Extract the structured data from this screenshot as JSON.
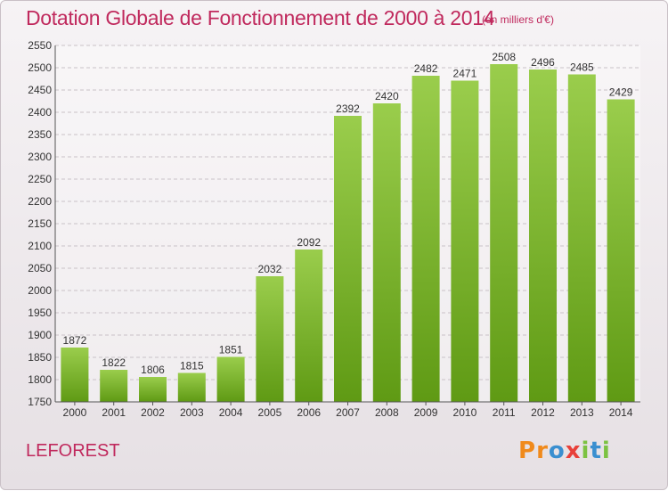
{
  "chart_data": {
    "type": "bar",
    "title": "Dotation Globale de Fonctionnement de 2000 à 2014",
    "subtitle": "(en milliers d'€)",
    "categories": [
      "2000",
      "2001",
      "2002",
      "2003",
      "2004",
      "2005",
      "2006",
      "2007",
      "2008",
      "2009",
      "2010",
      "2011",
      "2012",
      "2013",
      "2014"
    ],
    "values": [
      1872,
      1822,
      1806,
      1815,
      1851,
      2032,
      2092,
      2392,
      2420,
      2482,
      2471,
      2508,
      2496,
      2485,
      2429
    ],
    "ylim": [
      1750,
      2550
    ],
    "yticks": [
      1750,
      1800,
      1850,
      1900,
      1950,
      2000,
      2050,
      2100,
      2150,
      2200,
      2250,
      2300,
      2350,
      2400,
      2450,
      2500,
      2550
    ],
    "grid": true,
    "colors": {
      "bar_top": "#9acd4c",
      "bar_bottom": "#5f9a14",
      "title": "#c0295d"
    }
  },
  "commune": "LEFOREST",
  "logo": {
    "letters": [
      "P",
      "r",
      "o",
      "x",
      "i",
      "t",
      "i"
    ],
    "colors": [
      "#f08a1c",
      "#f08a1c",
      "#3a8fd0",
      "#e8403a",
      "#7cc242",
      "#3a8fd0",
      "#7cc242"
    ]
  }
}
